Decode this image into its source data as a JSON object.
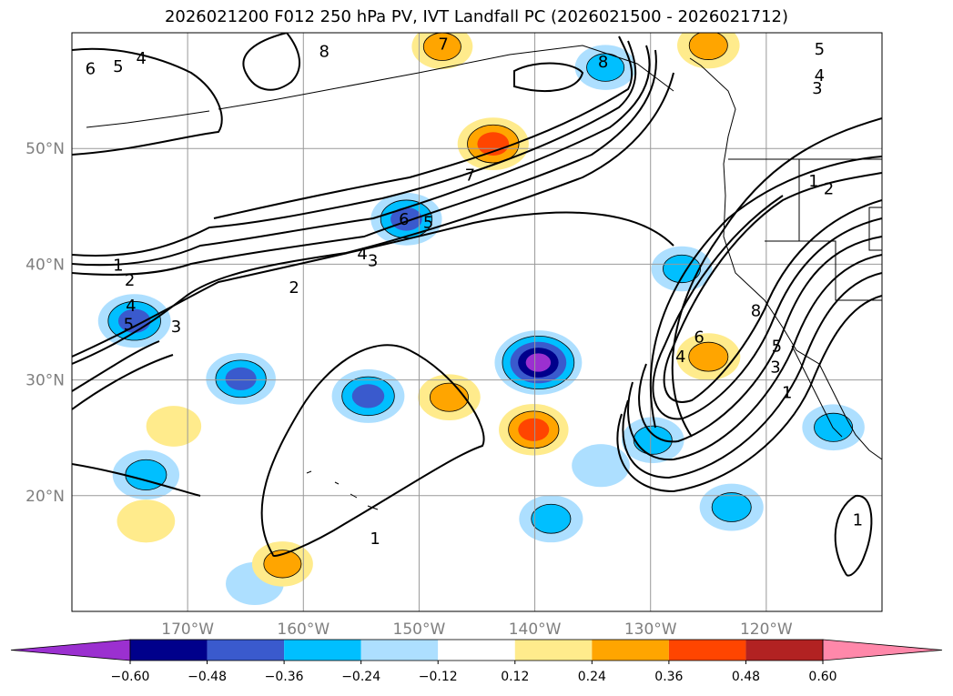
{
  "title": "2026021200 F012 250 hPa PV, IVT Landfall PC (2026021500 - 2026021712)",
  "map": {
    "lat_range": [
      10,
      60
    ],
    "lon_range": [
      -180,
      -110
    ],
    "lat_ticks": [
      {
        "lat": 20,
        "label": "20°N"
      },
      {
        "lat": 30,
        "label": "30°N"
      },
      {
        "lat": 40,
        "label": "40°N"
      },
      {
        "lat": 50,
        "label": "50°N"
      }
    ],
    "lon_ticks": [
      {
        "lon": -170,
        "label": "170°W"
      },
      {
        "lon": -160,
        "label": "160°W"
      },
      {
        "lon": -150,
        "label": "150°W"
      },
      {
        "lon": -140,
        "label": "140°W"
      },
      {
        "lon": -130,
        "label": "130°W"
      },
      {
        "lon": -120,
        "label": "120°W"
      }
    ]
  },
  "pv_contour_labels": [
    {
      "text": "6",
      "lon": -178.4,
      "lat": 56.9
    },
    {
      "text": "5",
      "lon": -176,
      "lat": 57.1
    },
    {
      "text": "4",
      "lon": -174,
      "lat": 57.8
    },
    {
      "text": "8",
      "lon": -158.2,
      "lat": 58.4
    },
    {
      "text": "7",
      "lon": -147.9,
      "lat": 59.0
    },
    {
      "text": "8",
      "lon": -134.1,
      "lat": 57.5
    },
    {
      "text": "5",
      "lon": -115.4,
      "lat": 58.6
    },
    {
      "text": "4",
      "lon": -115.4,
      "lat": 56.3
    },
    {
      "text": "3",
      "lon": -115.6,
      "lat": 55.2
    },
    {
      "text": "7",
      "lon": -145.6,
      "lat": 47.7
    },
    {
      "text": "6",
      "lon": -151.3,
      "lat": 43.9
    },
    {
      "text": "5",
      "lon": -149.2,
      "lat": 43.6
    },
    {
      "text": "4",
      "lon": -154.9,
      "lat": 40.9
    },
    {
      "text": "3",
      "lon": -154.0,
      "lat": 40.3
    },
    {
      "text": "2",
      "lon": -160.8,
      "lat": 38.0
    },
    {
      "text": "1",
      "lon": -176.0,
      "lat": 39.9
    },
    {
      "text": "2",
      "lon": -175.0,
      "lat": 38.6
    },
    {
      "text": "4",
      "lon": -174.9,
      "lat": 36.4
    },
    {
      "text": "5",
      "lon": -175.1,
      "lat": 34.8
    },
    {
      "text": "3",
      "lon": -171.0,
      "lat": 34.6
    },
    {
      "text": "1",
      "lon": -115.9,
      "lat": 47.2
    },
    {
      "text": "2",
      "lon": -114.6,
      "lat": 46.5
    },
    {
      "text": "8",
      "lon": -120.9,
      "lat": 36.0
    },
    {
      "text": "6",
      "lon": -125.8,
      "lat": 33.7
    },
    {
      "text": "4",
      "lon": -127.4,
      "lat": 32.0
    },
    {
      "text": "5",
      "lon": -119.1,
      "lat": 32.9
    },
    {
      "text": "3",
      "lon": -119.2,
      "lat": 31.1
    },
    {
      "text": "1",
      "lon": -118.2,
      "lat": 28.9
    },
    {
      "text": "1",
      "lon": -153.8,
      "lat": 16.3
    },
    {
      "text": "1",
      "lon": -112.1,
      "lat": 17.9
    }
  ],
  "ivt_pc_anomalies": [
    {
      "lon": -139.7,
      "lat": 31.5,
      "value": -0.62
    },
    {
      "lon": -151.1,
      "lat": 43.9,
      "value": -0.4
    },
    {
      "lon": -174.6,
      "lat": 35.1,
      "value": -0.42
    },
    {
      "lon": -165.4,
      "lat": 30.1,
      "value": -0.38
    },
    {
      "lon": -154.4,
      "lat": 28.6,
      "value": -0.42
    },
    {
      "lon": -173.6,
      "lat": 21.8,
      "value": -0.34
    },
    {
      "lon": -138.6,
      "lat": 18.0,
      "value": -0.3
    },
    {
      "lon": -129.8,
      "lat": 24.8,
      "value": -0.28
    },
    {
      "lon": -127.3,
      "lat": 39.6,
      "value": -0.26
    },
    {
      "lon": -123.0,
      "lat": 19.0,
      "value": -0.3
    },
    {
      "lon": -114.2,
      "lat": 25.9,
      "value": -0.28
    },
    {
      "lon": -133.9,
      "lat": 57.0,
      "value": -0.26
    },
    {
      "lon": -134.3,
      "lat": 22.6,
      "value": -0.22
    },
    {
      "lon": -164.2,
      "lat": 12.4,
      "value": -0.22
    },
    {
      "lon": -143.6,
      "lat": 50.4,
      "value": 0.4
    },
    {
      "lon": -140.1,
      "lat": 25.7,
      "value": 0.38
    },
    {
      "lon": -125.0,
      "lat": 32.0,
      "value": 0.3
    },
    {
      "lon": -148.0,
      "lat": 58.8,
      "value": 0.26
    },
    {
      "lon": -125.0,
      "lat": 58.9,
      "value": 0.28
    },
    {
      "lon": -147.4,
      "lat": 28.5,
      "value": 0.28
    },
    {
      "lon": -161.8,
      "lat": 14.1,
      "value": 0.26
    },
    {
      "lon": -173.6,
      "lat": 17.8,
      "value": 0.22
    },
    {
      "lon": -171.2,
      "lat": 26.0,
      "value": 0.18
    }
  ],
  "colorbar": {
    "colors": [
      "#9b30d0",
      "#00008b",
      "#3a5acd",
      "#00bfff",
      "#addfff",
      "#ffffff",
      "#ffeb8c",
      "#ffa500",
      "#ff4500",
      "#b22222",
      "#ff88aa"
    ],
    "tick_labels": [
      "−0.60",
      "−0.48",
      "−0.36",
      "−0.24",
      "−0.12",
      "0.12",
      "0.24",
      "0.36",
      "0.48",
      "0.60"
    ]
  }
}
